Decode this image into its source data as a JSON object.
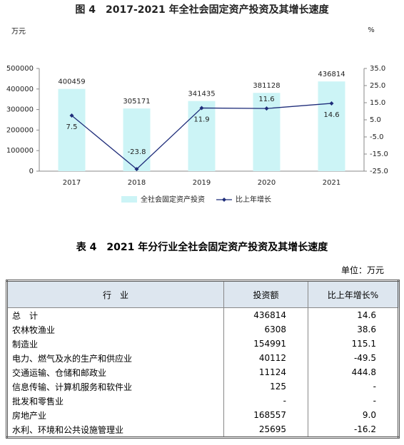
{
  "chart_data": {
    "type": "combo",
    "title": "图 4　2017-2021 年全社会固定资产投资及其增长速度",
    "y_label": "万元",
    "y2_label": "%",
    "categories": [
      "2017",
      "2018",
      "2019",
      "2020",
      "2021"
    ],
    "series": [
      {
        "name": "全社会固定资产投资",
        "type": "bar",
        "color": "#ccf4f6",
        "values": [
          400459,
          305171,
          341435,
          381128,
          436814
        ]
      },
      {
        "name": "比上年增长",
        "type": "line",
        "axis": "y2",
        "color": "#1f2d7a",
        "values": [
          7.5,
          -23.8,
          11.9,
          11.6,
          14.6
        ]
      }
    ],
    "ylim": [
      0,
      500000
    ],
    "yticks": [
      0,
      100000,
      200000,
      300000,
      400000,
      500000
    ],
    "y2lim": [
      -25,
      35
    ],
    "y2ticks": [
      {
        "value": 35,
        "label": "35.0"
      },
      {
        "value": 25,
        "label": "25.0"
      },
      {
        "value": 15,
        "label": "15.0"
      },
      {
        "value": 5,
        "label": "5.0"
      },
      {
        "value": -5,
        "label": "-5.0"
      },
      {
        "value": -15,
        "label": "-15.0"
      },
      {
        "value": -25,
        "label": "-25.0"
      }
    ],
    "legend": "bottom"
  },
  "table": {
    "title": "表 4　2021 年分行业全社会固定资产投资及其增长速度",
    "unit": "单位：万元",
    "header": [
      "行　业",
      "投资额",
      "比上年增长%"
    ],
    "rows": [
      [
        "总　计",
        "436814",
        "14.6"
      ],
      [
        "农林牧渔业",
        "6308",
        "38.6"
      ],
      [
        "制造业",
        "154991",
        "115.1"
      ],
      [
        "电力、燃气及水的生产和供应业",
        "40112",
        "-49.5"
      ],
      [
        "交通运输、仓储和邮政业",
        "11124",
        "444.8"
      ],
      [
        "信息传输、计算机服务和软件业",
        "125",
        "-"
      ],
      [
        "批发和零售业",
        "-",
        "-"
      ],
      [
        "房地产业",
        "168557",
        "9.0"
      ],
      [
        "水利、环境和公共设施管理业",
        "25695",
        "-16.2"
      ]
    ]
  }
}
